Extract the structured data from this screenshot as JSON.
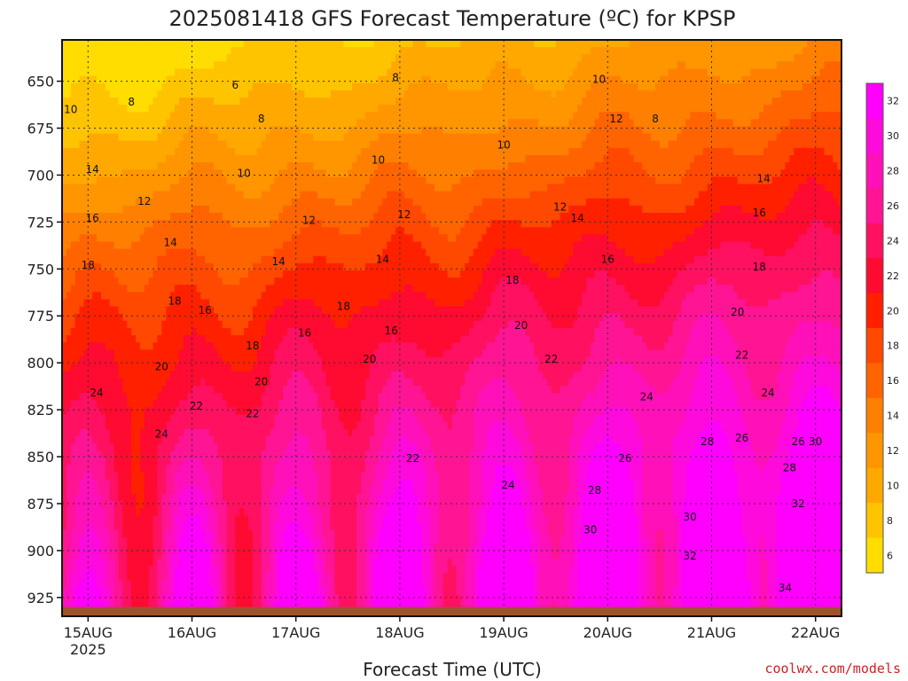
{
  "title": "2025081418 GFS Forecast Temperature (ºC) for KPSP",
  "xlabel": "Forecast Time (UTC)",
  "credit": "coolwx.com/models",
  "chart_data": {
    "type": "heatmap",
    "title": "2025081418 GFS Forecast Temperature (ºC) for KPSP",
    "xlabel": "Forecast Time (UTC)",
    "ylabel": "",
    "x_ticks": [
      {
        "label": "15AUG",
        "sublabel": "2025",
        "hour": 6
      },
      {
        "label": "16AUG",
        "hour": 30
      },
      {
        "label": "17AUG",
        "hour": 54
      },
      {
        "label": "18AUG",
        "hour": 78
      },
      {
        "label": "19AUG",
        "hour": 102
      },
      {
        "label": "20AUG",
        "hour": 126
      },
      {
        "label": "21AUG",
        "hour": 150
      },
      {
        "label": "22AUG",
        "hour": 174
      }
    ],
    "y_ticks": [
      650,
      675,
      700,
      725,
      750,
      775,
      800,
      825,
      850,
      875,
      900,
      925
    ],
    "xlim_hours": [
      0,
      180
    ],
    "ylim_hpa": [
      628,
      935
    ],
    "grid": true,
    "colorbar": {
      "levels": [
        6,
        8,
        10,
        12,
        14,
        16,
        18,
        20,
        22,
        24,
        26,
        28,
        30,
        32
      ],
      "colors": [
        "#ffdd00",
        "#ffc400",
        "#ffa800",
        "#ff9600",
        "#ff8000",
        "#ff6400",
        "#ff4800",
        "#ff2000",
        "#ff0a30",
        "#ff1060",
        "#ff1494",
        "#ff10b8",
        "#ff0adc",
        "#ff00ff"
      ]
    },
    "profile_hpa": [
      628,
      650,
      675,
      700,
      725,
      750,
      775,
      800,
      825,
      850,
      875,
      900,
      925,
      935
    ],
    "profile_base_c": [
      5.2,
      7.0,
      9.2,
      11.7,
      14.4,
      16.8,
      19.0,
      20.8,
      22.6,
      24.2,
      25.4,
      26.6,
      27.8,
      28.3
    ],
    "diurnal_amp_c": [
      0.3,
      0.4,
      0.5,
      0.6,
      0.7,
      0.9,
      1.0,
      1.2,
      1.6,
      2.4,
      3.6,
      5.0,
      6.4,
      7.0
    ],
    "warming_c_per_day": 1.2,
    "contour_labels": [
      {
        "v": "6",
        "h": 40,
        "p": 652
      },
      {
        "v": "8",
        "h": 16,
        "p": 661
      },
      {
        "v": "8",
        "h": 46,
        "p": 670
      },
      {
        "v": "8",
        "h": 77,
        "p": 648
      },
      {
        "v": "8",
        "h": 137,
        "p": 670
      },
      {
        "v": "10",
        "h": 2,
        "p": 665
      },
      {
        "v": "10",
        "h": 42,
        "p": 699
      },
      {
        "v": "10",
        "h": 73,
        "p": 692
      },
      {
        "v": "10",
        "h": 102,
        "p": 684
      },
      {
        "v": "10",
        "h": 124,
        "p": 649
      },
      {
        "v": "12",
        "h": 19,
        "p": 714
      },
      {
        "v": "12",
        "h": 57,
        "p": 724
      },
      {
        "v": "12",
        "h": 79,
        "p": 721
      },
      {
        "v": "12",
        "h": 115,
        "p": 717
      },
      {
        "v": "12",
        "h": 128,
        "p": 670
      },
      {
        "v": "14",
        "h": 7,
        "p": 697
      },
      {
        "v": "14",
        "h": 25,
        "p": 736
      },
      {
        "v": "14",
        "h": 50,
        "p": 746
      },
      {
        "v": "14",
        "h": 74,
        "p": 745
      },
      {
        "v": "14",
        "h": 119,
        "p": 723
      },
      {
        "v": "14",
        "h": 162,
        "p": 702
      },
      {
        "v": "16",
        "h": 7,
        "p": 723
      },
      {
        "v": "16",
        "h": 33,
        "p": 772
      },
      {
        "v": "16",
        "h": 56,
        "p": 784
      },
      {
        "v": "16",
        "h": 76,
        "p": 783
      },
      {
        "v": "16",
        "h": 126,
        "p": 745
      },
      {
        "v": "16",
        "h": 161,
        "p": 720
      },
      {
        "v": "18",
        "h": 6,
        "p": 748
      },
      {
        "v": "18",
        "h": 26,
        "p": 767
      },
      {
        "v": "18",
        "h": 44,
        "p": 791
      },
      {
        "v": "18",
        "h": 65,
        "p": 770
      },
      {
        "v": "18",
        "h": 104,
        "p": 756
      },
      {
        "v": "18",
        "h": 161,
        "p": 749
      },
      {
        "v": "20",
        "h": 23,
        "p": 802
      },
      {
        "v": "20",
        "h": 46,
        "p": 810
      },
      {
        "v": "20",
        "h": 71,
        "p": 798
      },
      {
        "v": "20",
        "h": 106,
        "p": 780
      },
      {
        "v": "20",
        "h": 156,
        "p": 773
      },
      {
        "v": "22",
        "h": 31,
        "p": 823
      },
      {
        "v": "22",
        "h": 44,
        "p": 827
      },
      {
        "v": "22",
        "h": 81,
        "p": 851
      },
      {
        "v": "22",
        "h": 113,
        "p": 798
      },
      {
        "v": "22",
        "h": 157,
        "p": 796
      },
      {
        "v": "24",
        "h": 8,
        "p": 816
      },
      {
        "v": "24",
        "h": 23,
        "p": 838
      },
      {
        "v": "24",
        "h": 103,
        "p": 865
      },
      {
        "v": "24",
        "h": 135,
        "p": 818
      },
      {
        "v": "24",
        "h": 163,
        "p": 816
      },
      {
        "v": "26",
        "h": 130,
        "p": 851
      },
      {
        "v": "26",
        "h": 157,
        "p": 840
      },
      {
        "v": "26",
        "h": 170,
        "p": 842
      },
      {
        "v": "28",
        "h": 123,
        "p": 868
      },
      {
        "v": "28",
        "h": 149,
        "p": 842
      },
      {
        "v": "28",
        "h": 168,
        "p": 856
      },
      {
        "v": "30",
        "h": 122,
        "p": 889
      },
      {
        "v": "30",
        "h": 145,
        "p": 882
      },
      {
        "v": "30",
        "h": 174,
        "p": 842
      },
      {
        "v": "32",
        "h": 145,
        "p": 903
      },
      {
        "v": "32",
        "h": 170,
        "p": 875
      },
      {
        "v": "34",
        "h": 167,
        "p": 920
      }
    ]
  }
}
